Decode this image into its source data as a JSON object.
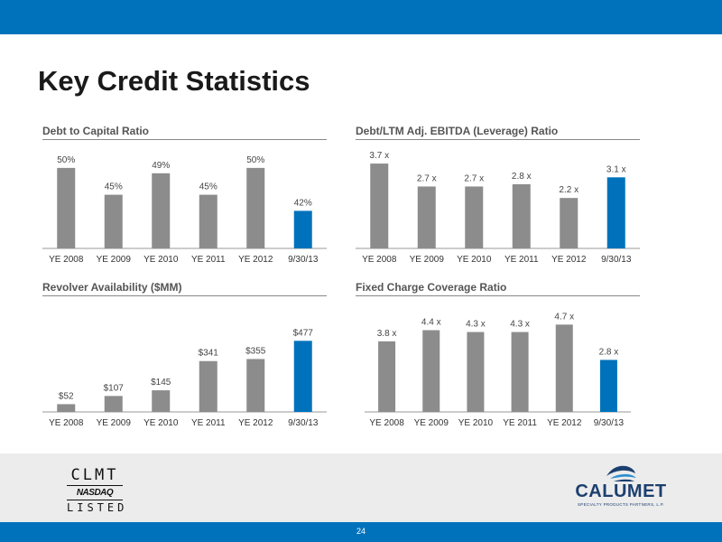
{
  "page": {
    "title": "Key Credit Statistics",
    "page_number": "24"
  },
  "colors": {
    "header_blue": "#0072bc",
    "bar_gray": "#8c8c8c",
    "bar_highlight": "#0072bc"
  },
  "chart_data": [
    {
      "id": "debt-to-capital",
      "type": "bar",
      "title": "Debt to Capital Ratio",
      "categories": [
        "YE 2008",
        "YE 2009",
        "YE 2010",
        "YE 2011",
        "YE 2012",
        "9/30/13"
      ],
      "values": [
        50,
        45,
        49,
        45,
        50,
        42
      ],
      "data_labels": [
        "50%",
        "45%",
        "49%",
        "45%",
        "50%",
        "42%"
      ],
      "highlight_index": 5,
      "ylim": [
        35,
        52
      ]
    },
    {
      "id": "leverage-ratio",
      "type": "bar",
      "title": "Debt/LTM Adj. EBITDA (Leverage) Ratio",
      "categories": [
        "YE 2008",
        "YE 2009",
        "YE 2010",
        "YE 2011",
        "YE 2012",
        "9/30/13"
      ],
      "values": [
        3.7,
        2.7,
        2.7,
        2.8,
        2.2,
        3.1
      ],
      "data_labels": [
        "3.7 x",
        "2.7 x",
        "2.7 x",
        "2.8 x",
        "2.2 x",
        "3.1 x"
      ],
      "highlight_index": 5,
      "ylim": [
        0,
        3.9
      ]
    },
    {
      "id": "revolver-availability",
      "type": "bar",
      "title": "Revolver Availability ($MM)",
      "categories": [
        "YE 2008",
        "YE 2009",
        "YE 2010",
        "YE 2011",
        "YE 2012",
        "9/30/13"
      ],
      "values": [
        52,
        107,
        145,
        341,
        355,
        477
      ],
      "data_labels": [
        "$52",
        "$107",
        "$145",
        "$341",
        "$355",
        "$477"
      ],
      "highlight_index": 5,
      "ylim": [
        0,
        600
      ]
    },
    {
      "id": "fixed-charge-coverage",
      "type": "bar",
      "title": "Fixed Charge Coverage Ratio",
      "categories": [
        "YE 2008",
        "YE 2009",
        "YE 2010",
        "YE 2011",
        "YE 2012",
        "9/30/13"
      ],
      "values": [
        3.8,
        4.4,
        4.3,
        4.3,
        4.7,
        2.8
      ],
      "data_labels": [
        "3.8 x",
        "4.4 x",
        "4.3 x",
        "4.3 x",
        "4.7 x",
        "2.8 x"
      ],
      "highlight_index": 5,
      "ylim": [
        0,
        5.3
      ]
    }
  ],
  "logos": {
    "nasdaq": {
      "ticker": "CLMT",
      "exchange": "NASDAQ",
      "listed": "LISTED"
    },
    "calumet": {
      "name": "CALUMET",
      "tagline": "SPECIALTY PRODUCTS PARTNERS, L.P."
    }
  }
}
